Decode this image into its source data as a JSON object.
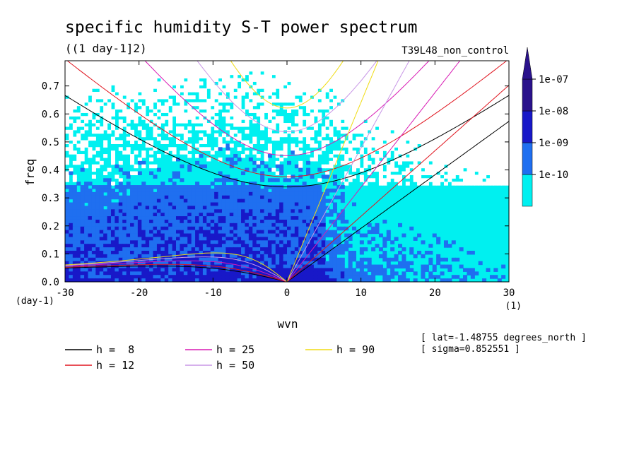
{
  "chart_data": {
    "type": "heatmap",
    "title": "specific humidity S-T power spectrum",
    "units": "((1 day-1]2)",
    "run_name": "T39L48_non_control",
    "xlabel": "wvn",
    "ylabel": "freq",
    "x_unit_label": "(1)",
    "y_unit_label": "(day-1)",
    "xlim": [
      -30,
      30
    ],
    "ylim": [
      0,
      0.79
    ],
    "x_ticks": [
      -30,
      -20,
      -10,
      0,
      10,
      20,
      30
    ],
    "x_tick_labels": [
      "-30",
      "-20",
      "-10",
      "0",
      "10",
      "20",
      "30"
    ],
    "y_ticks": [
      0,
      0.1,
      0.2,
      0.3,
      0.4,
      0.5,
      0.6,
      0.7
    ],
    "y_tick_labels": [
      "0.0",
      "0.1",
      "0.2",
      "0.3",
      "0.4",
      "0.5",
      "0.6",
      "0.7"
    ],
    "color_levels": [
      {
        "label": "1e-10",
        "color": "#00f0f0"
      },
      {
        "label": "1e-09",
        "color": "#1f6ff0"
      },
      {
        "label": "1e-08",
        "color": "#1818c8"
      },
      {
        "label": "1e-07",
        "color": "#2a128c"
      }
    ],
    "colorbar_labels": [
      "1e-07",
      "1e-08",
      "1e-09",
      "1e-10"
    ],
    "dispersion_curves": [
      {
        "name": "h =  8",
        "color": "#000000",
        "equivalent_depth": 8
      },
      {
        "name": "h = 12",
        "color": "#e0141e",
        "equivalent_depth": 12
      },
      {
        "name": "h = 25",
        "color": "#d81ab4",
        "equivalent_depth": 25
      },
      {
        "name": "h = 50",
        "color": "#c896e6",
        "equivalent_depth": 50
      },
      {
        "name": "h = 90",
        "color": "#f0dc14",
        "equivalent_depth": 90
      }
    ],
    "annotations": [
      "[ lat=-1.48755 degrees_north ]",
      "[ sigma=0.852551 ]"
    ]
  }
}
